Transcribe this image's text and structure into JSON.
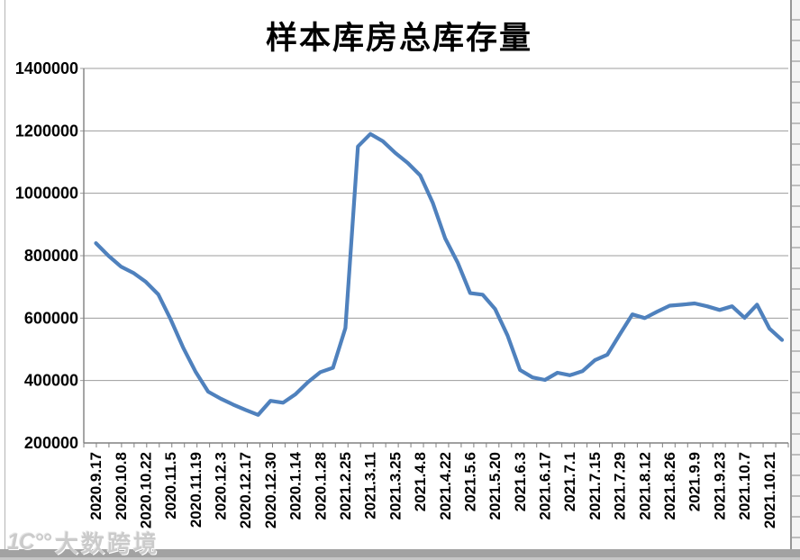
{
  "window": {
    "background": "#ffffff",
    "border_color": "#979797",
    "bottom_strip_color": "#a2a2a2"
  },
  "watermark": {
    "logo": "1C°°",
    "text": "大数跨境"
  },
  "chart_data": {
    "type": "line",
    "title": "样本库房总库存量",
    "xlabel": "",
    "ylabel": "",
    "legend": "none",
    "grid": true,
    "ylim": [
      200000,
      1400000
    ],
    "y_ticks": [
      200000,
      400000,
      600000,
      800000,
      1000000,
      1200000,
      1400000
    ],
    "label_every": 2,
    "x_tick_labels": [
      "2020.9.17",
      "2020.10.8",
      "2020.10.22",
      "2020.11.5",
      "2020.11.19",
      "2020.12.3",
      "2020.12.17",
      "2020.12.30",
      "2020.1.14",
      "2020.1.28",
      "2021.2.25",
      "2021.3.11",
      "2021.3.25",
      "2021.4.8",
      "2021.4.22",
      "2021.5.6",
      "2021.5.20",
      "2021.6.3",
      "2021.6.17",
      "2021.7.1",
      "2021.7.15",
      "2021.7.29",
      "2021.8.12",
      "2021.8.26",
      "2021.9.9",
      "2021.9.23",
      "2021.10.7",
      "2021.10.21"
    ],
    "values": [
      840000,
      800000,
      765000,
      745000,
      716000,
      676000,
      595000,
      505000,
      427000,
      364000,
      342000,
      323000,
      306000,
      290000,
      335000,
      329000,
      356000,
      395000,
      427000,
      441000,
      568000,
      1150000,
      1190000,
      1167000,
      1129000,
      1097000,
      1057000,
      970000,
      855000,
      778000,
      680000,
      675000,
      629000,
      544000,
      434000,
      410000,
      402000,
      425000,
      417000,
      430000,
      465000,
      483000,
      548000,
      612000,
      600000,
      621000,
      640000,
      643000,
      647000,
      638000,
      626000,
      638000,
      601000,
      643000,
      566000,
      530000
    ],
    "colors": {
      "series": "#4F81BD",
      "grid": "#9c9c9c",
      "axis": "#808080",
      "text": "#000000"
    }
  }
}
